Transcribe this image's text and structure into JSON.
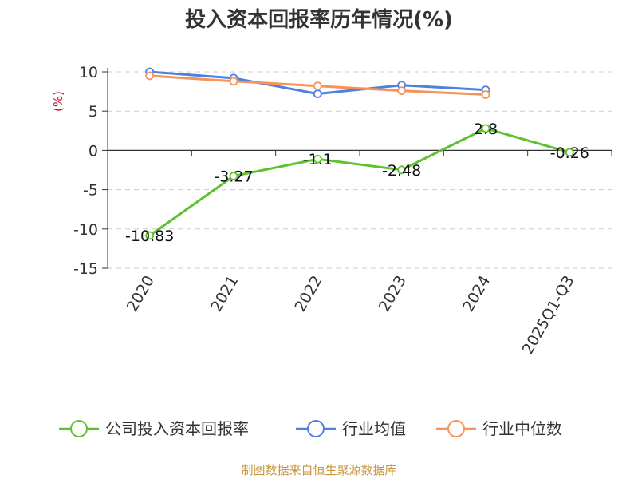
{
  "chart_data": {
    "type": "line",
    "title": "投入资本回报率历年情况(%)",
    "ylabel": "(%)",
    "categories": [
      "2020",
      "2021",
      "2022",
      "2023",
      "2024",
      "2025Q1-Q3"
    ],
    "ylim": [
      -15,
      10
    ],
    "yticks": [
      10,
      5,
      0,
      -5,
      -10,
      -15
    ],
    "grid": true,
    "legend_position": "bottom",
    "series": [
      {
        "name": "公司投入资本回报率",
        "color": "#5dc22e",
        "values": [
          -10.83,
          -3.27,
          -1.1,
          -2.48,
          2.8,
          -0.26
        ],
        "labels": [
          "-10.83",
          "-3.27",
          "-1.1",
          "-2.48",
          "2.8",
          "-0.26"
        ]
      },
      {
        "name": "行业均值",
        "color": "#4f7fe0",
        "values": [
          10.0,
          9.2,
          7.2,
          8.3,
          7.7,
          null
        ]
      },
      {
        "name": "行业中位数",
        "color": "#f5935a",
        "values": [
          9.5,
          8.8,
          8.2,
          7.6,
          7.1,
          null
        ]
      }
    ]
  },
  "footer": {
    "source": "制图数据来自恒生聚源数据库"
  }
}
